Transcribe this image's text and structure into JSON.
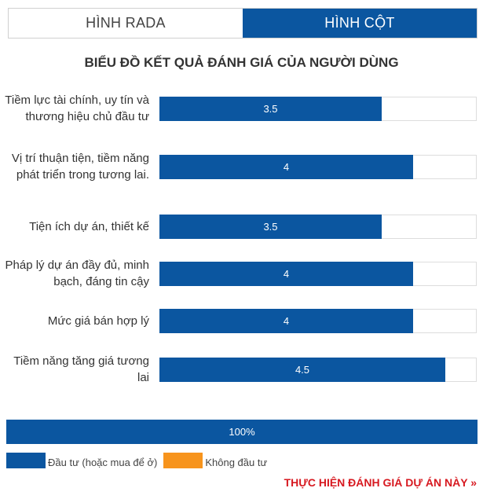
{
  "tabs": [
    {
      "label": "HÌNH RADA",
      "active": false
    },
    {
      "label": "HÌNH CỘT",
      "active": true
    }
  ],
  "colors": {
    "primary": "#0b56a0",
    "secondary": "#f7941d",
    "cta": "#d71920"
  },
  "chart_data": {
    "type": "bar",
    "orientation": "horizontal",
    "title": "BIỂU ĐỒ KẾT QUẢ ĐÁNH GIÁ CỦA NGƯỜI DÙNG",
    "categories": [
      "Tiềm lực tài chính, uy tín và thương hiệu chủ đầu tư",
      "Vị trí thuận tiện, tiềm năng phát triển trong tương lai.",
      "Tiện ích dự án, thiết kế",
      "Pháp lý dự án đầy đủ, minh bạch, đáng tin cậy",
      "Mức giá bán hợp lý",
      "Tiềm năng tăng giá tương lai"
    ],
    "values": [
      3.5,
      4,
      3.5,
      4,
      4,
      4.5
    ],
    "value_labels": [
      "3.5",
      "4",
      "3.5",
      "4",
      "4",
      "4.5"
    ],
    "xlim": [
      0,
      5
    ],
    "grid": false
  },
  "summary": {
    "label": "100%",
    "fraction": 1.0
  },
  "legend": [
    {
      "label": "Đầu tư (hoặc mua để ở)",
      "color": "#0b56a0"
    },
    {
      "label": "Không đầu tư",
      "color": "#f7941d"
    }
  ],
  "cta": {
    "label": "THỰC HIỆN ĐÁNH GIÁ DỰ ÁN NÀY »"
  }
}
